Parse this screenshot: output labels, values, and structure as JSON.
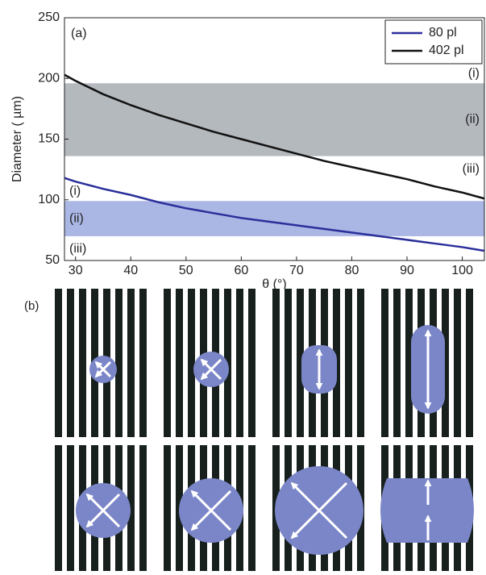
{
  "chart_data": {
    "type": "line",
    "panel_label": "(a)",
    "x_label": "θ (°)",
    "y_label": "Diameter ( µm)",
    "x": [
      28,
      30,
      35,
      40,
      45,
      50,
      55,
      60,
      65,
      70,
      75,
      80,
      85,
      90,
      95,
      100,
      104
    ],
    "series": [
      {
        "name": "80 pl",
        "color": "#2b2f9a",
        "values": [
          118,
          115,
          109,
          104,
          98,
          93,
          89,
          85,
          82,
          79,
          76,
          73,
          70,
          67,
          64,
          61,
          58
        ]
      },
      {
        "name": "402 pl",
        "color": "#111111",
        "values": [
          203,
          198,
          187,
          178,
          170,
          163,
          156,
          150,
          144,
          138,
          132,
          127,
          122,
          117,
          111,
          106,
          101
        ]
      }
    ],
    "bands": [
      {
        "range": [
          136,
          196
        ],
        "color": "#b4b9be",
        "side": "right",
        "label_color": "#222222",
        "labels": [
          "(i)",
          "(ii)",
          "(iii)"
        ]
      },
      {
        "range": [
          70,
          99
        ],
        "color": "#aab6e4",
        "side": "left",
        "label_color": "#2b2f9a",
        "labels": [
          "(i)",
          "(ii)",
          "(iii)"
        ]
      }
    ],
    "xlim": [
      28,
      104
    ],
    "ylim": [
      50,
      250
    ],
    "xticks": [
      30,
      40,
      50,
      60,
      70,
      80,
      90,
      100
    ],
    "yticks": [
      50,
      100,
      150,
      200,
      250
    ],
    "legend": "upper right"
  },
  "panel_b": {
    "label": "(b)"
  }
}
